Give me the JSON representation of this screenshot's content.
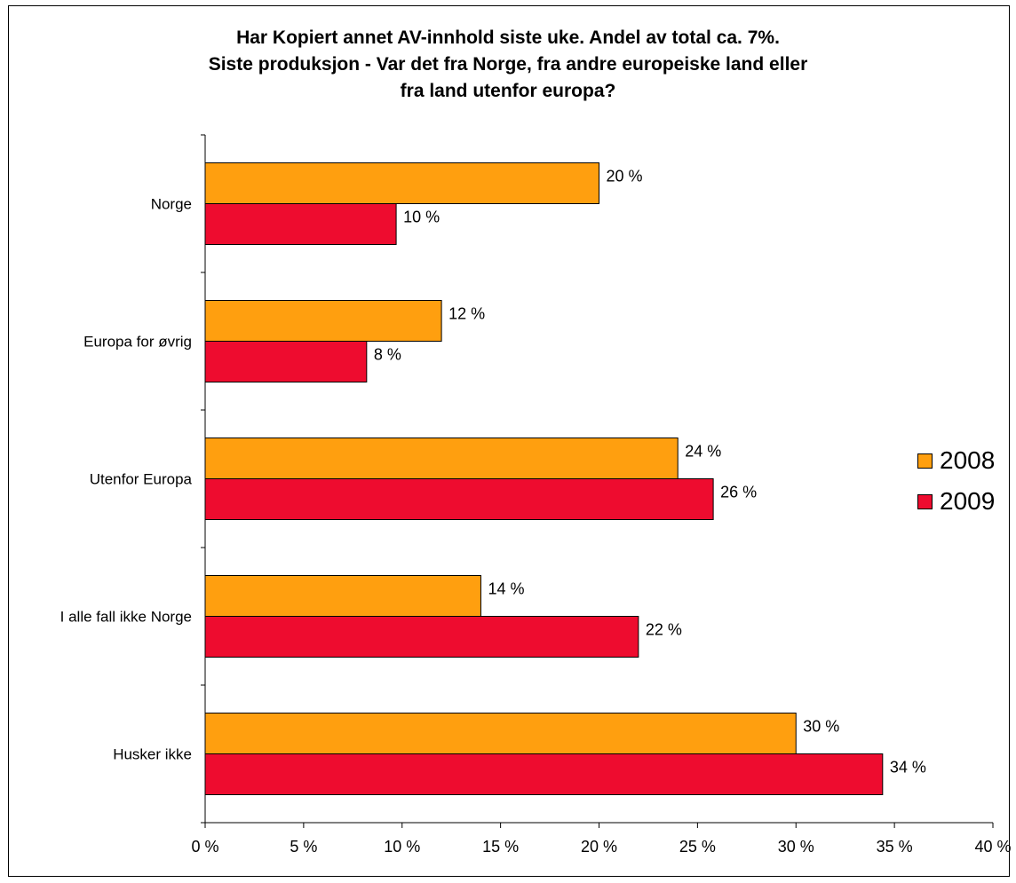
{
  "chart_data": {
    "type": "bar",
    "orientation": "horizontal",
    "title": [
      "Har Kopiert annet AV-innhold siste uke. Andel av total ca. 7%.",
      "Siste produksjon - Var det fra Norge, fra andre europeiske land eller",
      "fra land utenfor europa?"
    ],
    "categories": [
      "Norge",
      "Europa for øvrig",
      "Utenfor Europa",
      "I alle fall ikke Norge",
      "Husker ikke"
    ],
    "series": [
      {
        "name": "2008",
        "color": "#FF9F0F",
        "values": [
          20,
          12,
          24,
          14,
          30
        ],
        "labels": [
          "20 %",
          "12 %",
          "24 %",
          "14 %",
          "30 %"
        ]
      },
      {
        "name": "2009",
        "color": "#EE0C2F",
        "values": [
          9.7,
          8.2,
          25.8,
          22,
          34.4
        ],
        "labels": [
          "10 %",
          "8 %",
          "26 %",
          "22 %",
          "34 %"
        ]
      }
    ],
    "xlim": [
      0,
      40
    ],
    "xticks": [
      0,
      5,
      10,
      15,
      20,
      25,
      30,
      35,
      40
    ],
    "xtick_labels": [
      "0 %",
      "5 %",
      "10 %",
      "15 %",
      "20 %",
      "25 %",
      "30 %",
      "35 %",
      "40 %"
    ],
    "grid": false,
    "legend_position": "right"
  }
}
